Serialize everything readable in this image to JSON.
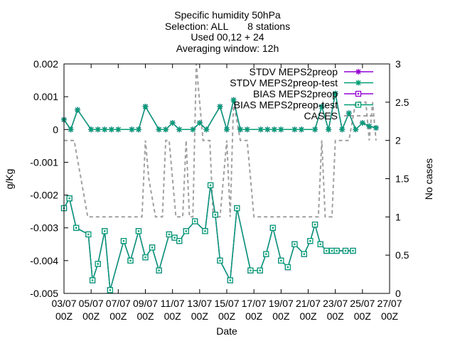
{
  "chart_data": {
    "type": "line",
    "title_lines": [
      "Specific humidity 50hPa",
      "Selection: ALL       8 stations",
      "Used 00,12 + 24",
      "Averaging window: 12h"
    ],
    "xlabel": "Date",
    "ylabel": "g/Kg",
    "y2label": "No cases",
    "xlim": [
      0,
      48
    ],
    "ylim": [
      -0.005,
      0.002
    ],
    "y2lim": [
      0,
      3
    ],
    "x_ticks": [
      {
        "x": 0,
        "day": "03/07",
        "hour": "00Z"
      },
      {
        "x": 4,
        "day": "05/07",
        "hour": "00Z"
      },
      {
        "x": 8,
        "day": "07/07",
        "hour": "00Z"
      },
      {
        "x": 12,
        "day": "09/07",
        "hour": "00Z"
      },
      {
        "x": 16,
        "day": "11/07",
        "hour": "00Z"
      },
      {
        "x": 20,
        "day": "13/07",
        "hour": "00Z"
      },
      {
        "x": 24,
        "day": "15/07",
        "hour": "00Z"
      },
      {
        "x": 28,
        "day": "17/07",
        "hour": "00Z"
      },
      {
        "x": 32,
        "day": "19/07",
        "hour": "00Z"
      },
      {
        "x": 36,
        "day": "21/07",
        "hour": "00Z"
      },
      {
        "x": 40,
        "day": "23/07",
        "hour": "00Z"
      },
      {
        "x": 44,
        "day": "25/07",
        "hour": "00Z"
      },
      {
        "x": 48,
        "day": "27/07",
        "hour": "00Z"
      }
    ],
    "y_ticks": [
      "0.002",
      "0.001",
      "0",
      "-0.001",
      "-0.002",
      "-0.003",
      "-0.004",
      "-0.005"
    ],
    "y_tick_values": [
      0.002,
      0.001,
      0,
      -0.001,
      -0.002,
      -0.003,
      -0.004,
      -0.005
    ],
    "y2_ticks": [
      "3",
      "2.5",
      "2",
      "1.5",
      "1",
      "0.5",
      "0"
    ],
    "y2_tick_values": [
      3,
      2.5,
      2,
      1.5,
      1,
      0.5,
      0
    ],
    "legend_position": "top-right",
    "series": [
      {
        "name": "STDV MEPS2preop",
        "axis": "y",
        "color": "#9400d3",
        "marker": "star",
        "dash": "solid",
        "x": [
          0,
          1,
          2,
          4,
          5,
          6,
          7,
          8,
          10,
          11,
          12,
          14,
          15,
          16,
          17,
          19,
          20,
          21,
          23,
          24,
          25,
          26,
          27,
          29,
          30,
          31,
          32,
          34,
          35,
          37,
          38,
          39,
          40,
          41,
          42,
          43,
          44,
          45,
          46
        ],
        "y": [
          0.0003,
          0,
          0.0006,
          0,
          0,
          0,
          0,
          0,
          0,
          0,
          0.0007,
          0,
          0,
          0.0002,
          0,
          0,
          0.0002,
          0,
          0.0007,
          0,
          0.0009,
          0,
          0,
          0,
          0,
          0,
          0,
          0,
          0,
          0,
          0.0007,
          0,
          0.0011,
          0,
          0.0005,
          0,
          0.0002,
          0.0001,
          5e-05
        ]
      },
      {
        "name": "STDV MEPS2preop-test",
        "axis": "y",
        "color": "#009e73",
        "marker": "star",
        "dash": "solid",
        "x": [
          0,
          1,
          2,
          4,
          5,
          6,
          7,
          8,
          10,
          11,
          12,
          14,
          15,
          16,
          17,
          19,
          20,
          21,
          23,
          24,
          25,
          26,
          27,
          29,
          30,
          31,
          32,
          34,
          35,
          37,
          38,
          39,
          40,
          41,
          42,
          43,
          44,
          45,
          46
        ],
        "y": [
          0.0003,
          0,
          0.0006,
          0,
          0,
          0,
          0,
          0,
          0,
          0,
          0.0007,
          0,
          0,
          0.0002,
          0,
          0,
          0.0002,
          0,
          0.0007,
          0,
          0.0009,
          0,
          0,
          0,
          0,
          0,
          0,
          0,
          0,
          0,
          0.0007,
          0,
          0.0011,
          0,
          0.0005,
          0,
          0.0002,
          0.0001,
          5e-05
        ]
      },
      {
        "name": "BIAS MEPS2preop",
        "axis": "y",
        "color": "#9400d3",
        "marker": "square",
        "dash": "solid",
        "x": [
          0,
          0.8,
          1.8,
          3.6,
          4.2,
          5,
          6,
          6.8,
          8.8,
          9.8,
          11,
          12,
          13,
          14,
          15.5,
          16.3,
          17,
          18,
          19.3,
          20.8,
          21.6,
          22.3,
          23,
          24.5,
          25.5,
          27.5,
          28.9,
          29.8,
          30.8,
          32,
          33,
          34,
          35.4,
          36.3,
          37,
          37.8,
          38.7,
          39.5,
          40.2,
          41.5,
          42.6
        ],
        "y": [
          -0.0024,
          -0.0021,
          -0.003,
          -0.0032,
          -0.0046,
          -0.0041,
          -0.0031,
          -0.0049,
          -0.0034,
          -0.004,
          -0.0031,
          -0.0039,
          -0.0036,
          -0.0043,
          -0.0032,
          -0.0033,
          -0.0034,
          -0.0031,
          -0.0028,
          -0.0031,
          -0.0017,
          -0.0026,
          -0.004,
          -0.0046,
          -0.0024,
          -0.0043,
          -0.0043,
          -0.0038,
          -0.003,
          -0.004,
          -0.0042,
          -0.0035,
          -0.0038,
          -0.0034,
          -0.0029,
          -0.0035,
          -0.0037,
          -0.0037,
          -0.0037,
          -0.0037,
          -0.0037
        ]
      },
      {
        "name": "BIAS MEPS2preop-test",
        "axis": "y",
        "color": "#009e73",
        "marker": "square",
        "dash": "solid",
        "x": [
          0,
          0.8,
          1.8,
          3.6,
          4.2,
          5,
          6,
          6.8,
          8.8,
          9.8,
          11,
          12,
          13,
          14,
          15.5,
          16.3,
          17,
          18,
          19.3,
          20.8,
          21.6,
          22.3,
          23,
          24.5,
          25.5,
          27.5,
          28.9,
          29.8,
          30.8,
          32,
          33,
          34,
          35.4,
          36.3,
          37,
          37.8,
          38.7,
          39.5,
          40.2,
          41.5,
          42.6
        ],
        "y": [
          -0.0024,
          -0.0021,
          -0.003,
          -0.0032,
          -0.0046,
          -0.0041,
          -0.0031,
          -0.0049,
          -0.0034,
          -0.004,
          -0.0031,
          -0.0039,
          -0.0036,
          -0.0043,
          -0.0032,
          -0.0033,
          -0.0034,
          -0.0031,
          -0.0028,
          -0.0031,
          -0.0017,
          -0.0026,
          -0.004,
          -0.0046,
          -0.0024,
          -0.0043,
          -0.0043,
          -0.0038,
          -0.003,
          -0.004,
          -0.0042,
          -0.0035,
          -0.0038,
          -0.0034,
          -0.0029,
          -0.0035,
          -0.0037,
          -0.0037,
          -0.0037,
          -0.0037,
          -0.0037
        ]
      },
      {
        "name": "CASES",
        "axis": "y2",
        "color": "#a0a0a0",
        "marker": "none",
        "dash": "dashed",
        "x": [
          0,
          1.5,
          2.5,
          3.5,
          4,
          7.5,
          10,
          11.5,
          12,
          12.5,
          13.5,
          14.5,
          15,
          15.5,
          16.5,
          17.5,
          18,
          18.5,
          19,
          19.5,
          20.5,
          21.5,
          22,
          23,
          24,
          24.5,
          25,
          26,
          26.5,
          27,
          28,
          29,
          30,
          31.5,
          33,
          34.5,
          35,
          37.5,
          38,
          38.5,
          39,
          39.5,
          40,
          41,
          42,
          43,
          43.5,
          44.5,
          45,
          45.5,
          46
        ],
        "y": [
          2,
          2,
          1.5,
          1,
          1,
          1,
          1,
          1,
          2,
          1.5,
          1,
          1,
          2,
          2,
          1,
          1,
          2,
          1,
          1,
          3,
          2,
          2,
          1,
          1,
          2,
          1,
          2.5,
          2,
          2,
          2,
          1,
          1,
          1,
          1,
          1,
          1,
          1,
          1,
          2,
          1,
          1,
          1,
          2,
          2,
          2,
          2.5,
          2.5,
          2.5,
          2,
          2.5,
          2
        ]
      }
    ]
  }
}
